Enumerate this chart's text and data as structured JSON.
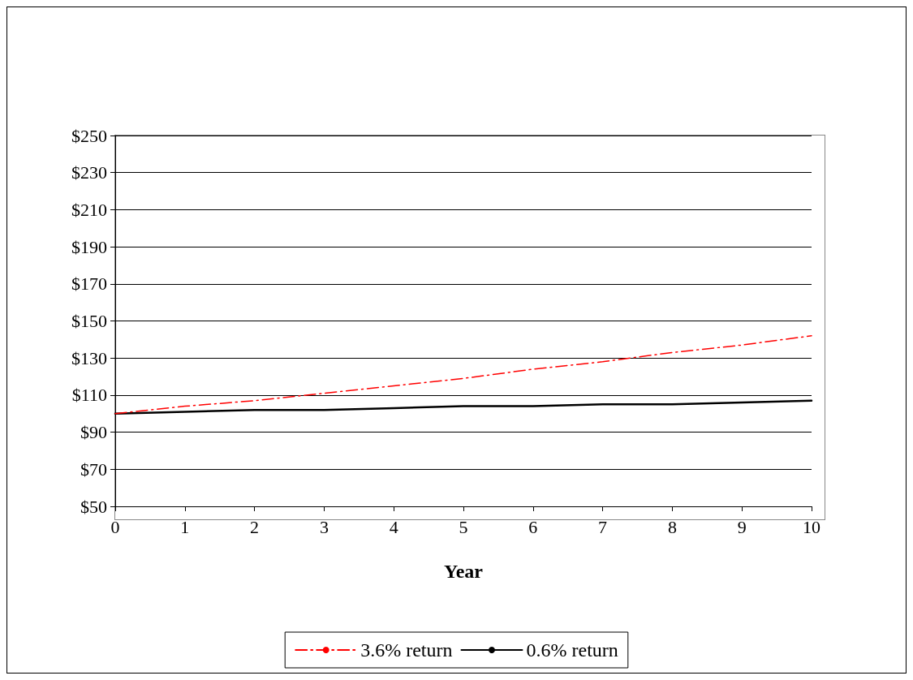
{
  "chart_data": {
    "type": "line",
    "xlabel": "Year",
    "x": [
      0,
      1,
      2,
      3,
      4,
      5,
      6,
      7,
      8,
      9,
      10
    ],
    "xlim": [
      0,
      10
    ],
    "xticks": [
      0,
      1,
      2,
      3,
      4,
      5,
      6,
      7,
      8,
      9,
      10
    ],
    "ylim": [
      50,
      250
    ],
    "yticks": [
      {
        "value": 50,
        "label": "$50"
      },
      {
        "value": 70,
        "label": "$70"
      },
      {
        "value": 90,
        "label": "$90"
      },
      {
        "value": 110,
        "label": "$110"
      },
      {
        "value": 130,
        "label": "$130"
      },
      {
        "value": 150,
        "label": "$150"
      },
      {
        "value": 170,
        "label": "$170"
      },
      {
        "value": 190,
        "label": "$190"
      },
      {
        "value": 210,
        "label": "$210"
      },
      {
        "value": 230,
        "label": "$230"
      },
      {
        "value": 250,
        "label": "$250"
      }
    ],
    "grid": "y",
    "legend": "bottom",
    "marker": "none",
    "series": [
      {
        "name": "3.6% return",
        "color": "#ff0000",
        "line_style": "dashed",
        "values": [
          100,
          104,
          107,
          111,
          115,
          119,
          124,
          128,
          133,
          137,
          142
        ]
      },
      {
        "name": "0.6% return",
        "color": "#000000",
        "line_style": "solid",
        "values": [
          100,
          101,
          102,
          102,
          103,
          104,
          104,
          105,
          105,
          106,
          107
        ]
      }
    ]
  }
}
